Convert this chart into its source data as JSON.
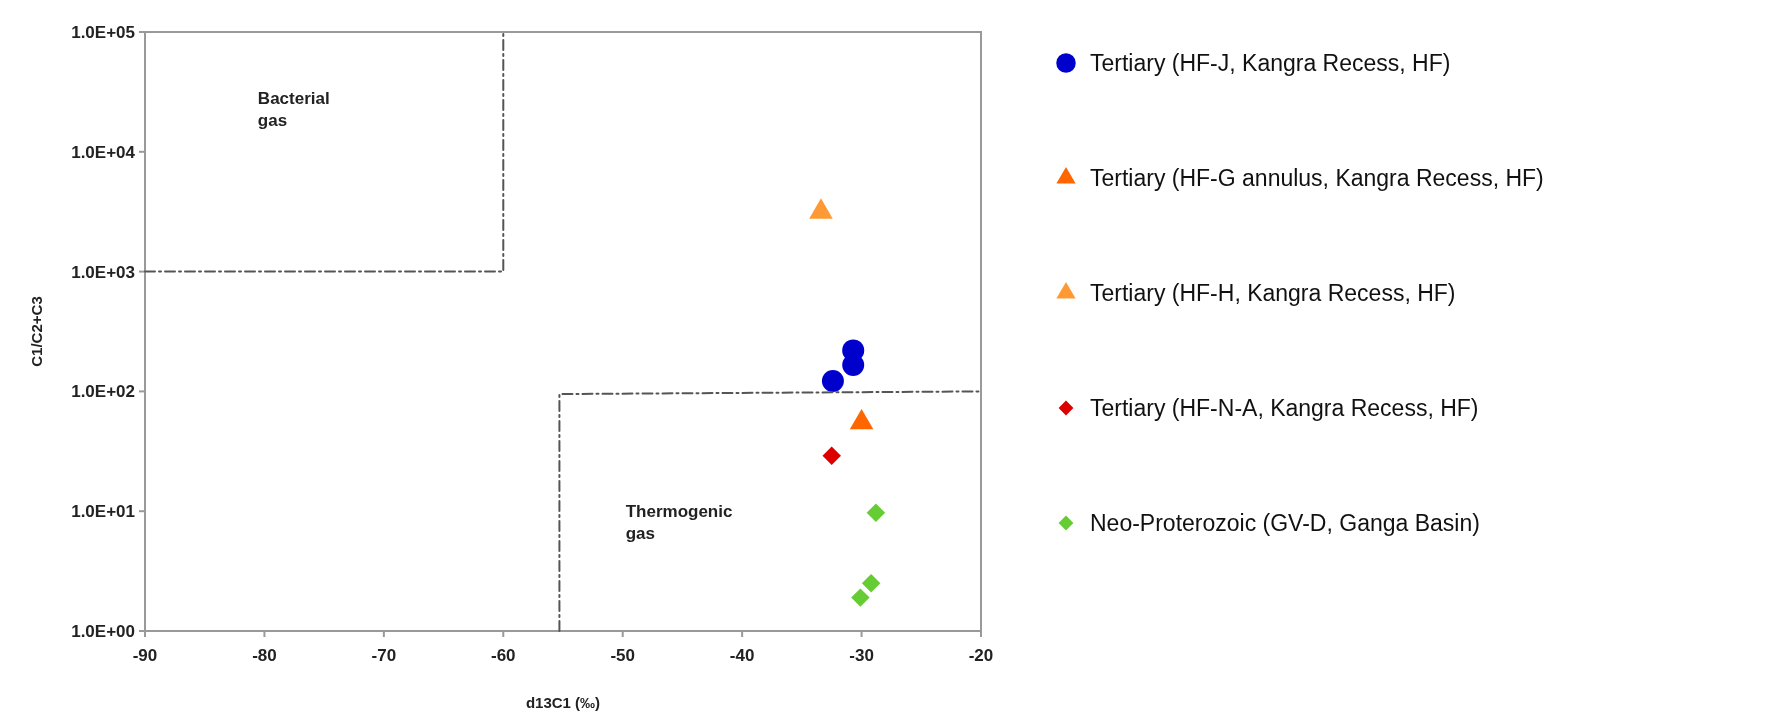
{
  "chart_data": {
    "type": "scatter",
    "xlabel": "d13C1 (‰)",
    "ylabel": "C1/C2+C3",
    "log": "y",
    "xlim": [
      -90,
      -20
    ],
    "xticks": [
      -90,
      -80,
      -70,
      -60,
      -50,
      -40,
      -30,
      -20
    ],
    "ylim": [
      1,
      100000
    ],
    "yticks": [
      {
        "value": 1,
        "label": "1.0E+00"
      },
      {
        "value": 10,
        "label": "1.0E+01"
      },
      {
        "value": 100,
        "label": "1.0E+02"
      },
      {
        "value": 1000,
        "label": "1.0E+03"
      },
      {
        "value": 10000,
        "label": "1.0E+04"
      },
      {
        "value": 100000,
        "label": "1.0E+05"
      }
    ],
    "legend": "right",
    "series": [
      {
        "name": "Tertiary (HF-J, Kangra Recess, HF)",
        "color": "#0000cc",
        "marker": "circle",
        "x": [
          -30.7,
          -30.7,
          -32.4
        ],
        "values": [
          220,
          166,
          122
        ]
      },
      {
        "name": "Tertiary (HF-G annulus, Kangra Recess, HF)",
        "color": "#ff6600",
        "marker": "triangle",
        "x": [
          -30.0
        ],
        "values": [
          55
        ]
      },
      {
        "name": "Tertiary (HF-H, Kangra Recess, HF)",
        "color": "#ff9933",
        "marker": "triangle",
        "x": [
          -33.4
        ],
        "values": [
          3150
        ]
      },
      {
        "name": "Tertiary (HF-N-A, Kangra Recess, HF)",
        "color": "#dd0000",
        "marker": "diamond",
        "x": [
          -32.5
        ],
        "values": [
          29
        ]
      },
      {
        "name": "Neo-Proterozoic (GV-D, Ganga Basin)",
        "color": "#66cc33",
        "marker": "diamond",
        "x": [
          -28.8,
          -29.2,
          -30.1
        ],
        "values": [
          9.7,
          2.5,
          1.9
        ]
      },
      {
        "type": "line",
        "color": "#555555",
        "line_style": "dashed",
        "x": [
          -90,
          -60,
          -60
        ],
        "values": [
          1000,
          1000,
          100000
        ]
      },
      {
        "type": "line",
        "color": "#555555",
        "line_style": "dashed",
        "x": [
          -55.3,
          -55.3,
          -20
        ],
        "values": [
          1,
          95,
          100
        ]
      }
    ],
    "annotations": [
      "Bacterial gas",
      "Thermogenic gas"
    ]
  }
}
